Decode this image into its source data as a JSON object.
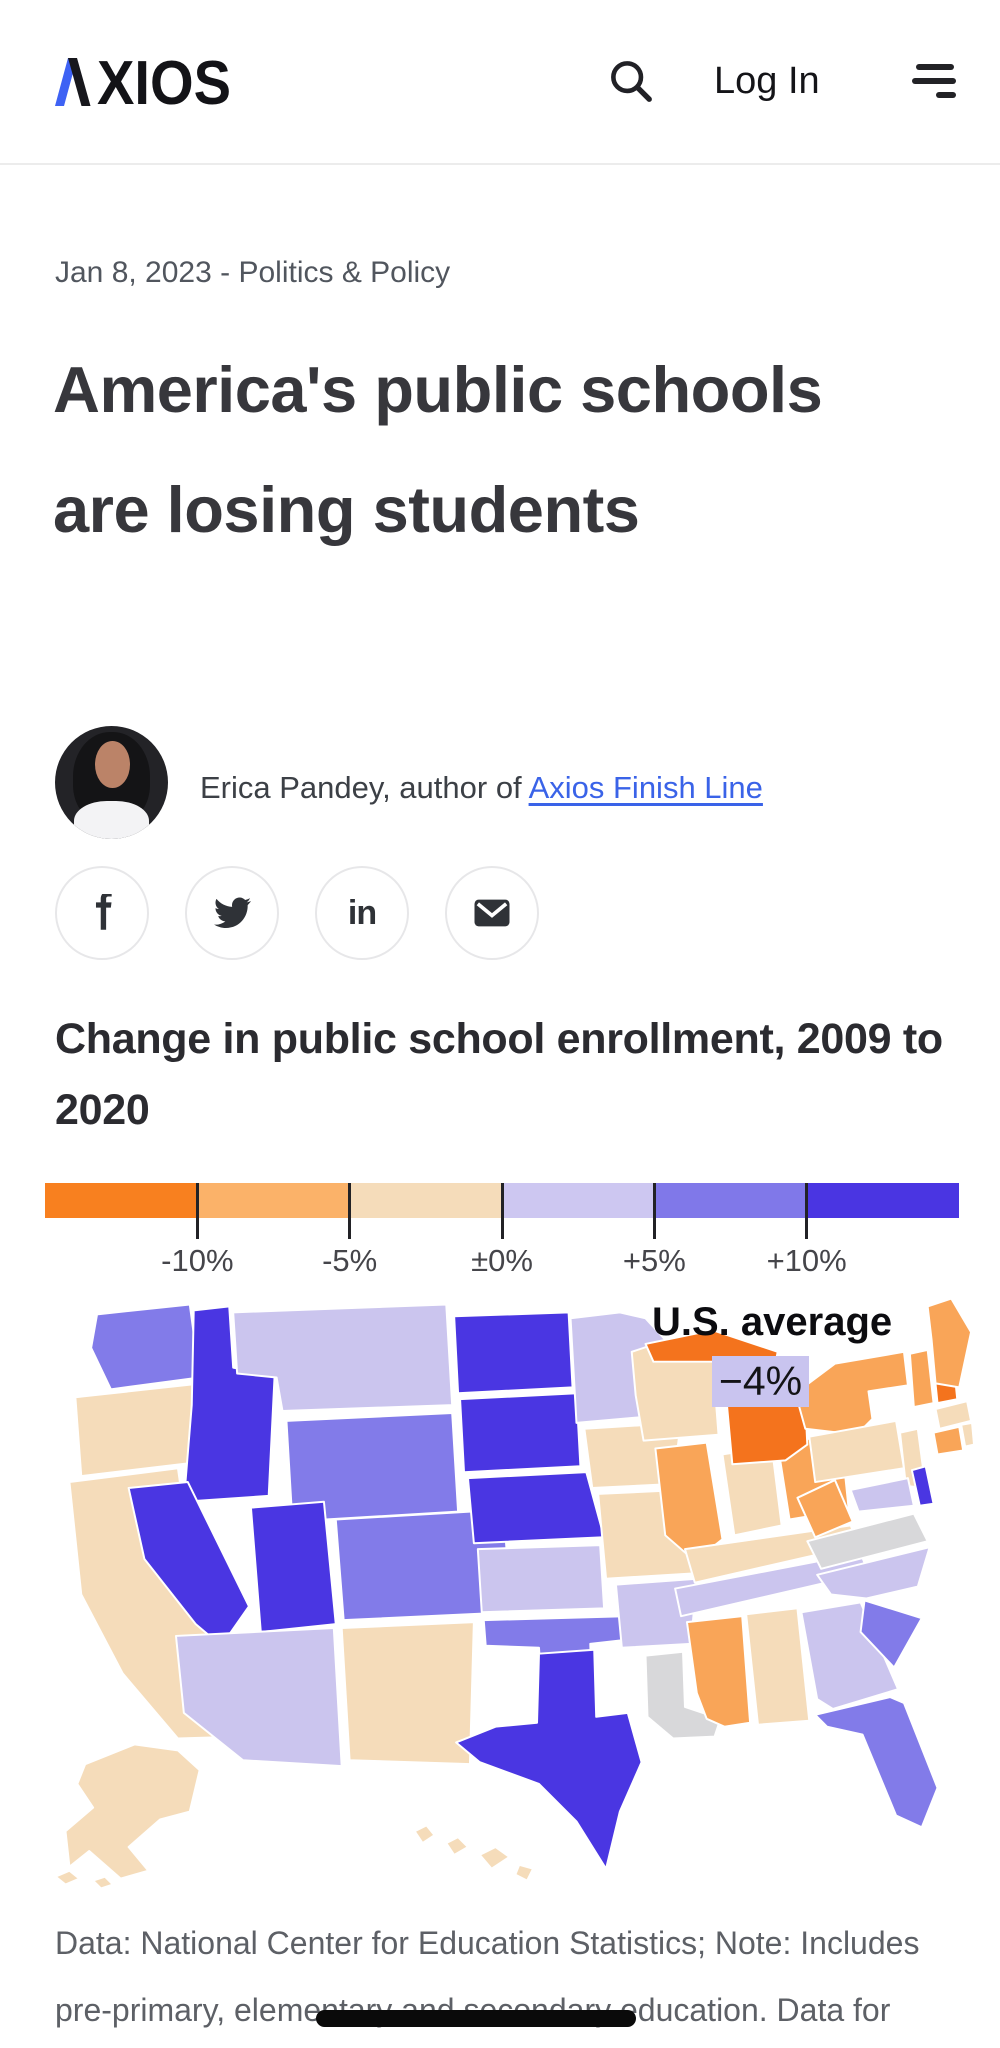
{
  "header": {
    "logo_text": "AXIOS",
    "logo_accent_color": "#3e62f4",
    "login_label": "Log In"
  },
  "article": {
    "dateline": "Jan 8, 2023 - Politics & Policy",
    "headline": "America's public schools are losing students",
    "byline_prefix": "Erica Pandey, author of ",
    "byline_link": "Axios Finish Line",
    "link_color": "#3a63e8",
    "share_buttons": [
      "facebook",
      "twitter",
      "linkedin",
      "email"
    ]
  },
  "chart_data": {
    "type": "choropleth",
    "title": "Change in public school enrollment, 2009 to 2020",
    "unit": "percent change in enrollment",
    "legend": {
      "labels": [
        "-10%",
        "-5%",
        "±0%",
        "+5%",
        "+10%"
      ],
      "bins": [
        {
          "range": "below -10%",
          "color": "#f8801f"
        },
        {
          "range": "-10% to -5%",
          "color": "#fbb269"
        },
        {
          "range": "-5% to 0%",
          "color": "#f5dcba"
        },
        {
          "range": "0% to +5%",
          "color": "#cdc7f1"
        },
        {
          "range": "+5% to +10%",
          "color": "#8078e9"
        },
        {
          "range": "above +10%",
          "color": "#4a35e2"
        }
      ],
      "position": "top"
    },
    "annotation": {
      "label": "U.S. average",
      "value": "−4%",
      "box_color": "#c9c4ef"
    },
    "bucket_colors": {
      "decline_over_10": "#f4731d",
      "decline_5_10": "#f9a558",
      "decline_0_5": "#f5dcba",
      "growth_0_5": "#cbc5ee",
      "growth_5_10": "#827be9",
      "growth_over_10": "#4a36e2",
      "no_data": "#d8d8da"
    },
    "state_buckets": {
      "WA": "growth_5_10",
      "OR": "decline_0_5",
      "CA": "decline_0_5",
      "ID": "growth_over_10",
      "NV": "growth_over_10",
      "UT": "growth_over_10",
      "AZ": "growth_0_5",
      "MT": "growth_0_5",
      "WY": "growth_5_10",
      "CO": "growth_5_10",
      "NM": "decline_0_5",
      "ND": "growth_over_10",
      "SD": "growth_over_10",
      "NE": "growth_over_10",
      "KS": "growth_0_5",
      "OK": "growth_5_10",
      "TX": "growth_over_10",
      "MN": "growth_0_5",
      "IA": "decline_0_5",
      "MO": "decline_0_5",
      "AR": "growth_0_5",
      "LA": "no_data",
      "WI": "decline_0_5",
      "IL": "decline_5_10",
      "MI": "decline_over_10",
      "IN": "decline_0_5",
      "OH": "decline_5_10",
      "KY": "decline_0_5",
      "WV": "decline_5_10",
      "TN": "growth_0_5",
      "MS": "decline_5_10",
      "AL": "decline_0_5",
      "GA": "growth_0_5",
      "SC": "growth_5_10",
      "FL": "growth_5_10",
      "NC": "growth_0_5",
      "VA": "no_data",
      "MD": "growth_0_5",
      "DE": "growth_over_10",
      "PA": "decline_0_5",
      "NJ": "decline_0_5",
      "NY": "decline_5_10",
      "VT": "decline_5_10",
      "NH": "decline_over_10",
      "ME": "decline_5_10",
      "MA": "decline_0_5",
      "CT": "decline_5_10",
      "RI": "decline_0_5",
      "AK": "decline_0_5",
      "HI": "decline_0_5"
    }
  },
  "footnote": "Data: National Center for Education Statistics; Note: Includes pre-primary, elementary and secondary education. Data for"
}
